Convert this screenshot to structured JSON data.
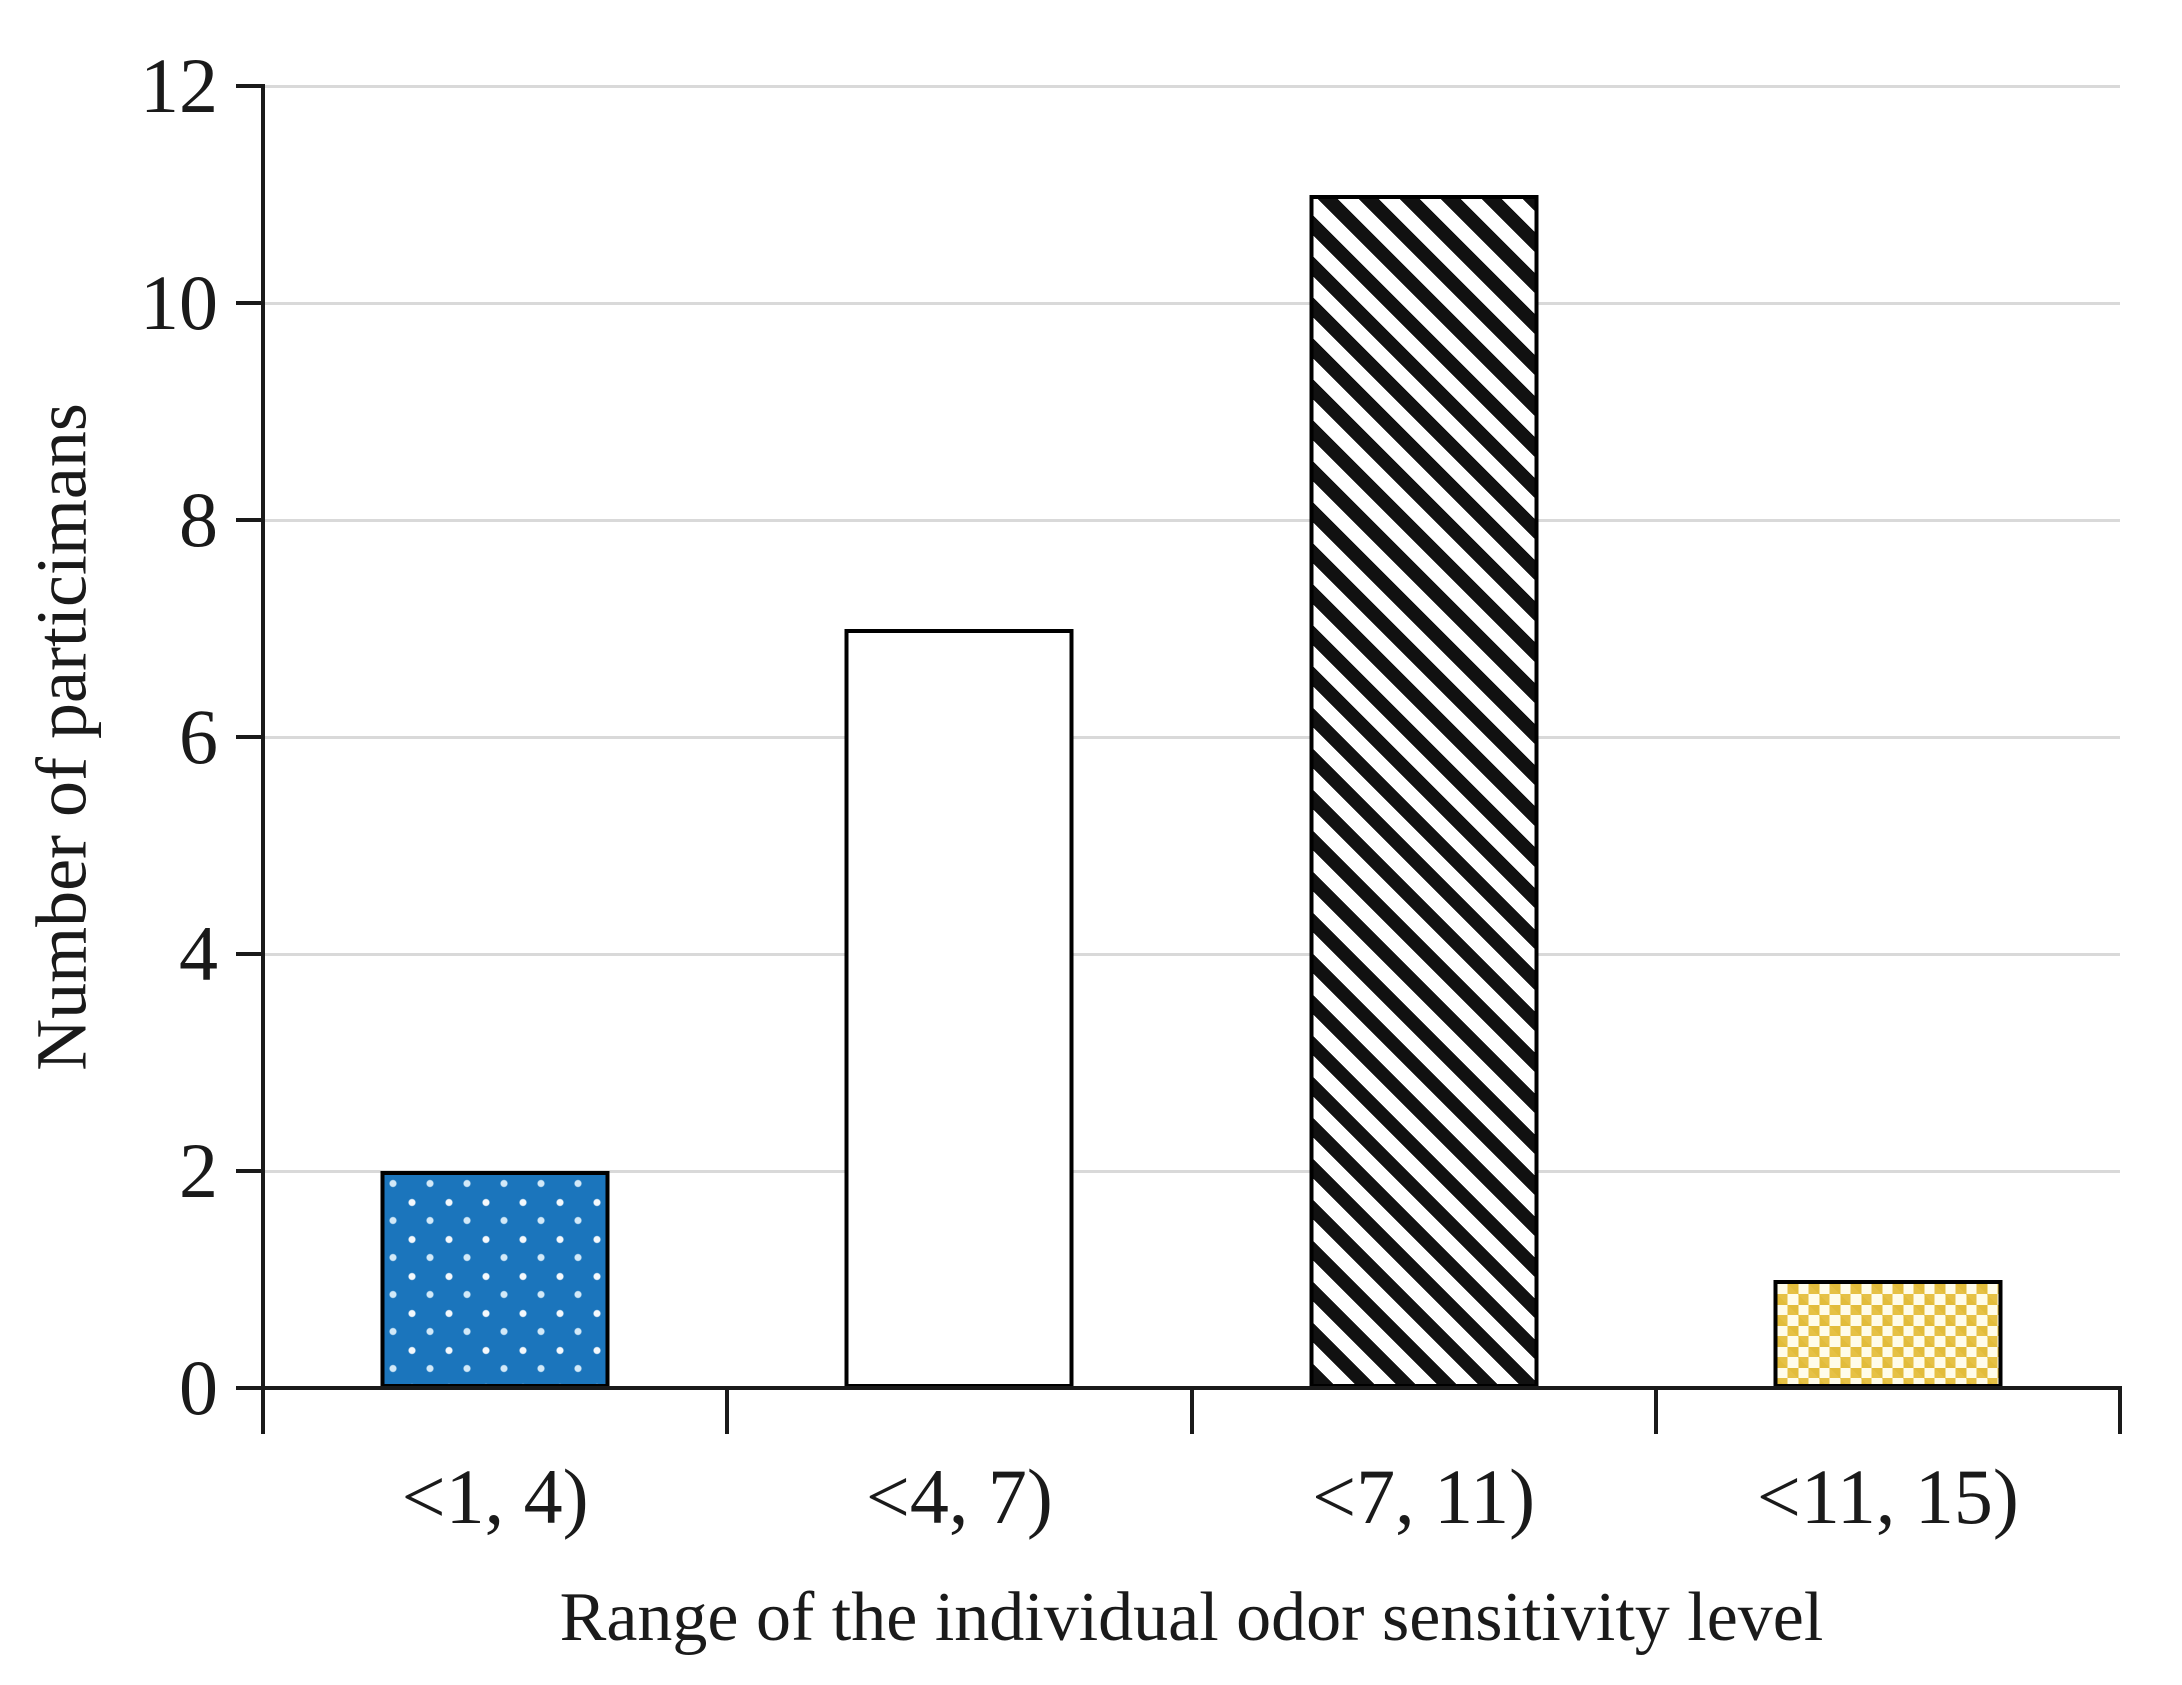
{
  "chart_data": {
    "type": "bar",
    "title": "",
    "categories": [
      "<1, 4)",
      "<4, 7)",
      "<7, 11)",
      "<11, 15)"
    ],
    "values": [
      2,
      7,
      11,
      1
    ],
    "xlabel": "Range of the individual odor sensitivity level",
    "ylabel": "Number of particimans",
    "ylim": [
      0,
      12
    ],
    "yticks": [
      0,
      2,
      4,
      6,
      8,
      10,
      12
    ],
    "grid": "horizontal",
    "legend_position": "none",
    "bar_styles": [
      {
        "pattern": "blue-dots",
        "fill": "#1b75bc",
        "dot_color": "#ffffff",
        "border": "#000000"
      },
      {
        "pattern": "solid-white",
        "fill": "#ffffff",
        "border": "#000000"
      },
      {
        "pattern": "diagonal-hatch",
        "fill": "#ffffff",
        "stripe_color": "#111111",
        "border": "#000000"
      },
      {
        "pattern": "gold-check",
        "fill": "#fffcea",
        "square_color": "#e2bc3b",
        "border": "#000000"
      }
    ],
    "colors": {
      "gridline": "#d9d9d9",
      "axis": "#1a1a1a",
      "text": "#1a1a1a",
      "background": "#ffffff"
    }
  }
}
